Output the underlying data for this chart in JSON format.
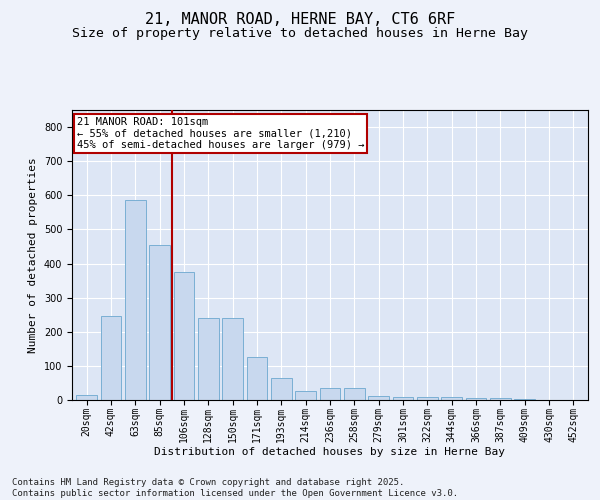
{
  "title1": "21, MANOR ROAD, HERNE BAY, CT6 6RF",
  "title2": "Size of property relative to detached houses in Herne Bay",
  "xlabel": "Distribution of detached houses by size in Herne Bay",
  "ylabel": "Number of detached properties",
  "categories": [
    "20sqm",
    "42sqm",
    "63sqm",
    "85sqm",
    "106sqm",
    "128sqm",
    "150sqm",
    "171sqm",
    "193sqm",
    "214sqm",
    "236sqm",
    "258sqm",
    "279sqm",
    "301sqm",
    "322sqm",
    "344sqm",
    "366sqm",
    "387sqm",
    "409sqm",
    "430sqm",
    "452sqm"
  ],
  "values": [
    15,
    245,
    585,
    455,
    375,
    240,
    240,
    125,
    65,
    25,
    35,
    35,
    12,
    10,
    10,
    10,
    5,
    5,
    2,
    0,
    0
  ],
  "bar_color": "#c8d8ee",
  "bar_edge_color": "#7aafd4",
  "bar_width": 0.85,
  "vline_index": 4,
  "vline_color": "#b00000",
  "annotation_text": "21 MANOR ROAD: 101sqm\n← 55% of detached houses are smaller (1,210)\n45% of semi-detached houses are larger (979) →",
  "annotation_box_color": "#ffffff",
  "annotation_box_edge": "#b00000",
  "ylim": [
    0,
    850
  ],
  "yticks": [
    0,
    100,
    200,
    300,
    400,
    500,
    600,
    700,
    800
  ],
  "bg_color": "#eef2fa",
  "plot_bg_color": "#dde6f5",
  "grid_color": "#ffffff",
  "footnote": "Contains HM Land Registry data © Crown copyright and database right 2025.\nContains public sector information licensed under the Open Government Licence v3.0.",
  "title1_fontsize": 11,
  "title2_fontsize": 9.5,
  "xlabel_fontsize": 8,
  "ylabel_fontsize": 8,
  "tick_fontsize": 7,
  "annotation_fontsize": 7.5,
  "footnote_fontsize": 6.5
}
